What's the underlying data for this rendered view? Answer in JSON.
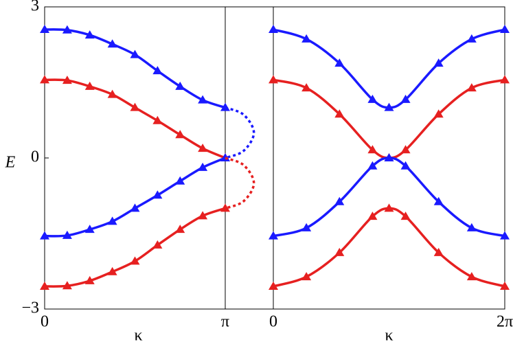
{
  "chart_data": [
    {
      "type": "line",
      "x_label": "κ",
      "y_label": "E",
      "xlim": [
        0,
        3.978
      ],
      "ylim": [
        -3,
        3
      ],
      "xticks": [
        0,
        {
          "value": 3.1416,
          "label": "π"
        }
      ],
      "yticks": [
        {
          "value": -3,
          "label": "−3"
        },
        0,
        3
      ],
      "vline": 3.1416,
      "series": [
        {
          "color": "#1a1aff",
          "x": [
            0,
            0.3927,
            0.7854,
            1.1781,
            1.5708,
            1.9635,
            2.3562,
            2.7489,
            3.1416
          ],
          "values": [
            2.55,
            2.54,
            2.44,
            2.26,
            2.05,
            1.73,
            1.42,
            1.15,
            1.0
          ]
        },
        {
          "color": "#e62020",
          "x": [
            0,
            0.3927,
            0.7854,
            1.1781,
            1.5708,
            1.9635,
            2.3562,
            2.7489,
            3.1416
          ],
          "values": [
            1.55,
            1.54,
            1.42,
            1.26,
            1.0,
            0.74,
            0.46,
            0.19,
            0
          ]
        },
        {
          "color": "#1a1aff",
          "x": [
            0,
            0.3927,
            0.7854,
            1.1781,
            1.5708,
            1.9635,
            2.3562,
            2.7489,
            3.1416
          ],
          "values": [
            -1.55,
            -1.54,
            -1.42,
            -1.26,
            -1.0,
            -0.74,
            -0.46,
            -0.19,
            0
          ]
        },
        {
          "color": "#e62020",
          "x": [
            0,
            0.3927,
            0.7854,
            1.1781,
            1.5708,
            1.9635,
            2.3562,
            2.7489,
            3.1416
          ],
          "values": [
            -2.55,
            -2.54,
            -2.44,
            -2.26,
            -2.05,
            -1.73,
            -1.42,
            -1.15,
            -1.0
          ]
        },
        {
          "color": "#1a1aff",
          "dashed": true,
          "x": [
            3.1416,
            3.46,
            3.64,
            3.46,
            3.1416
          ],
          "values": [
            1.0,
            0.86,
            0.5,
            0.14,
            0
          ]
        },
        {
          "color": "#e62020",
          "dashed": true,
          "x": [
            3.1416,
            3.46,
            3.64,
            3.46,
            3.1416
          ],
          "values": [
            0,
            -0.14,
            -0.5,
            -0.86,
            -1.0
          ]
        }
      ]
    },
    {
      "type": "line",
      "x_label": "κ",
      "xlim": [
        0,
        6.2832
      ],
      "ylim": [
        -3,
        3
      ],
      "xticks": [
        0,
        {
          "value": 6.2832,
          "label": "2π"
        }
      ],
      "series": [
        {
          "color": "#1a1aff",
          "x": [
            0,
            0.8976,
            1.7952,
            2.6928,
            3.1416,
            3.5904,
            4.488,
            5.3856,
            6.2832
          ],
          "values": [
            2.55,
            2.36,
            1.88,
            1.16,
            1.0,
            1.16,
            1.88,
            2.36,
            2.55
          ]
        },
        {
          "color": "#e62020",
          "x": [
            0,
            0.8976,
            1.7952,
            2.6928,
            3.1416,
            3.5904,
            4.488,
            5.3856,
            6.2832
          ],
          "values": [
            1.55,
            1.39,
            0.87,
            0.16,
            0,
            0.16,
            0.87,
            1.39,
            1.55
          ]
        },
        {
          "color": "#1a1aff",
          "x": [
            0,
            0.8976,
            1.7952,
            2.6928,
            3.1416,
            3.5904,
            4.488,
            5.3856,
            6.2832
          ],
          "values": [
            -1.55,
            -1.39,
            -0.87,
            -0.16,
            0,
            -0.16,
            -0.87,
            -1.39,
            -1.55
          ]
        },
        {
          "color": "#e62020",
          "x": [
            0,
            0.8976,
            1.7952,
            2.6928,
            3.1416,
            3.5904,
            4.488,
            5.3856,
            6.2832
          ],
          "values": [
            -2.55,
            -2.36,
            -1.88,
            -1.16,
            -1.0,
            -1.16,
            -1.88,
            -2.36,
            -2.55
          ]
        }
      ]
    }
  ]
}
